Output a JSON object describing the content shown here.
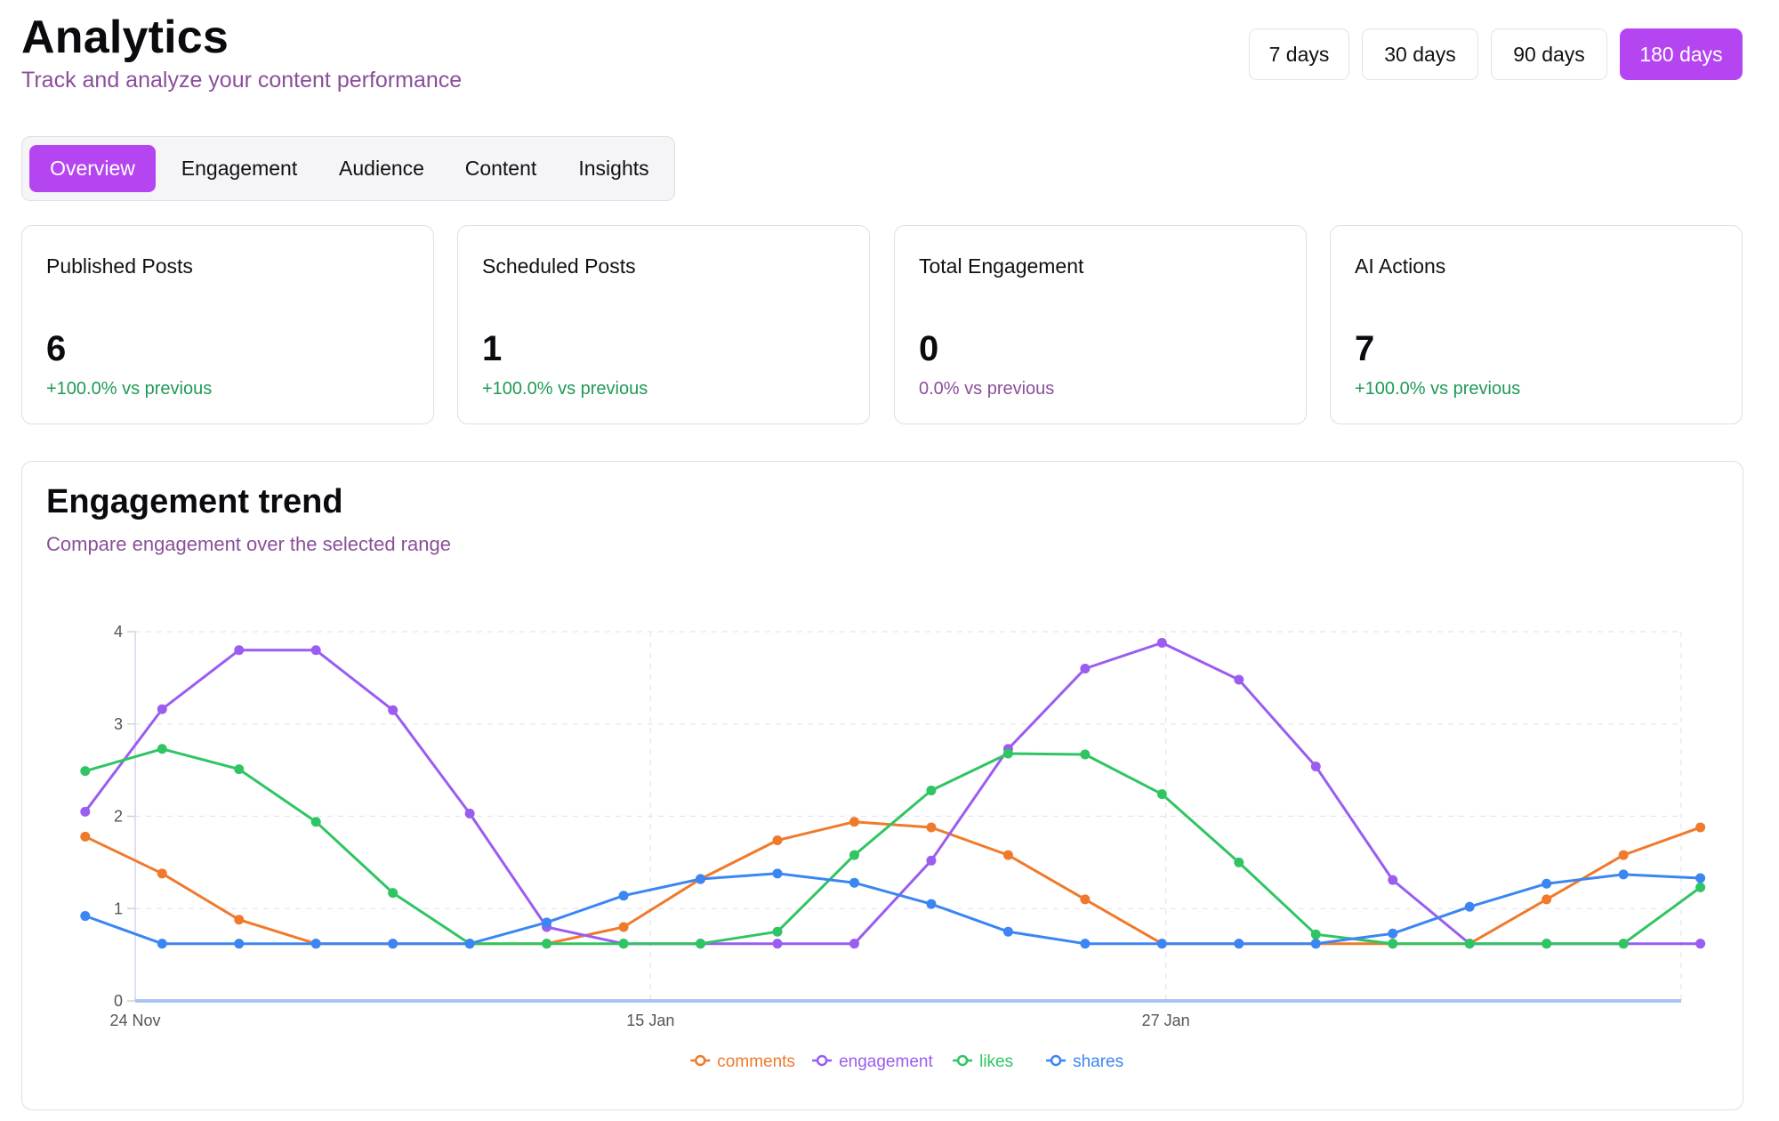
{
  "header": {
    "title": "Analytics",
    "subtitle": "Track and analyze your content performance"
  },
  "range_buttons": [
    {
      "label": "7 days",
      "active": false
    },
    {
      "label": "30 days",
      "active": false
    },
    {
      "label": "90 days",
      "active": false
    },
    {
      "label": "180 days",
      "active": true
    }
  ],
  "tabs": [
    {
      "label": "Overview",
      "active": true
    },
    {
      "label": "Engagement",
      "active": false
    },
    {
      "label": "Audience",
      "active": false
    },
    {
      "label": "Content",
      "active": false
    },
    {
      "label": "Insights",
      "active": false
    }
  ],
  "stats": [
    {
      "label": "Published Posts",
      "value": "6",
      "delta": "+100.0% vs previous",
      "trend": "positive"
    },
    {
      "label": "Scheduled Posts",
      "value": "1",
      "delta": "+100.0% vs previous",
      "trend": "positive"
    },
    {
      "label": "Total Engagement",
      "value": "0",
      "delta": "0.0% vs previous",
      "trend": "neutral"
    },
    {
      "label": "AI Actions",
      "value": "7",
      "delta": "+100.0% vs previous",
      "trend": "positive"
    }
  ],
  "chart": {
    "title": "Engagement trend",
    "subtitle": "Compare engagement over the selected range"
  },
  "colors": {
    "accent": "#b545f0",
    "comments": "#f07a2b",
    "engagement": "#9b5cf0",
    "likes": "#2fc563",
    "shares": "#3b86f2",
    "positive": "#1f9a56",
    "neutral": "#8a4f9a"
  },
  "chart_data": {
    "type": "line",
    "title": "Engagement trend",
    "x_tick_labels": [
      "24 Nov",
      "15 Jan",
      "27 Jan"
    ],
    "x_tick_indices": [
      0,
      6.7,
      13.4
    ],
    "x_range": [
      0,
      20.1
    ],
    "ylim": [
      0,
      4
    ],
    "yticks": [
      0,
      1,
      2,
      3,
      4
    ],
    "grid": true,
    "legend_position": "bottom",
    "x_index": [
      -0.65,
      0.35,
      1.35,
      2.35,
      3.35,
      4.35,
      5.35,
      6.35,
      7.35,
      8.35,
      9.35,
      10.35,
      11.35,
      12.35,
      13.35,
      14.35,
      15.35,
      16.35,
      17.35,
      18.35,
      19.35,
      20.35
    ],
    "series": [
      {
        "name": "comments",
        "color": "#f07a2b",
        "values": [
          1.78,
          1.38,
          0.88,
          0.62,
          0.62,
          0.62,
          0.62,
          0.8,
          1.32,
          1.74,
          1.94,
          1.88,
          1.58,
          1.1,
          0.62,
          0.62,
          0.62,
          0.62,
          0.62,
          1.1,
          1.58,
          1.88
        ]
      },
      {
        "name": "engagement",
        "color": "#9b5cf0",
        "values": [
          2.05,
          3.16,
          3.8,
          3.8,
          3.15,
          2.03,
          0.8,
          0.62,
          0.62,
          0.62,
          0.62,
          1.52,
          2.73,
          3.6,
          3.88,
          3.48,
          2.54,
          1.31,
          0.62,
          0.62,
          0.62,
          0.62
        ]
      },
      {
        "name": "likes",
        "color": "#2fc563",
        "values": [
          2.49,
          2.73,
          2.51,
          1.94,
          1.17,
          0.62,
          0.62,
          0.62,
          0.62,
          0.75,
          1.58,
          2.28,
          2.68,
          2.67,
          2.24,
          1.5,
          0.72,
          0.62,
          0.62,
          0.62,
          0.62,
          1.23
        ]
      },
      {
        "name": "shares",
        "color": "#3b86f2",
        "values": [
          0.92,
          0.62,
          0.62,
          0.62,
          0.62,
          0.62,
          0.85,
          1.14,
          1.32,
          1.38,
          1.28,
          1.05,
          0.75,
          0.62,
          0.62,
          0.62,
          0.62,
          0.73,
          1.02,
          1.27,
          1.37,
          1.33
        ]
      }
    ]
  }
}
